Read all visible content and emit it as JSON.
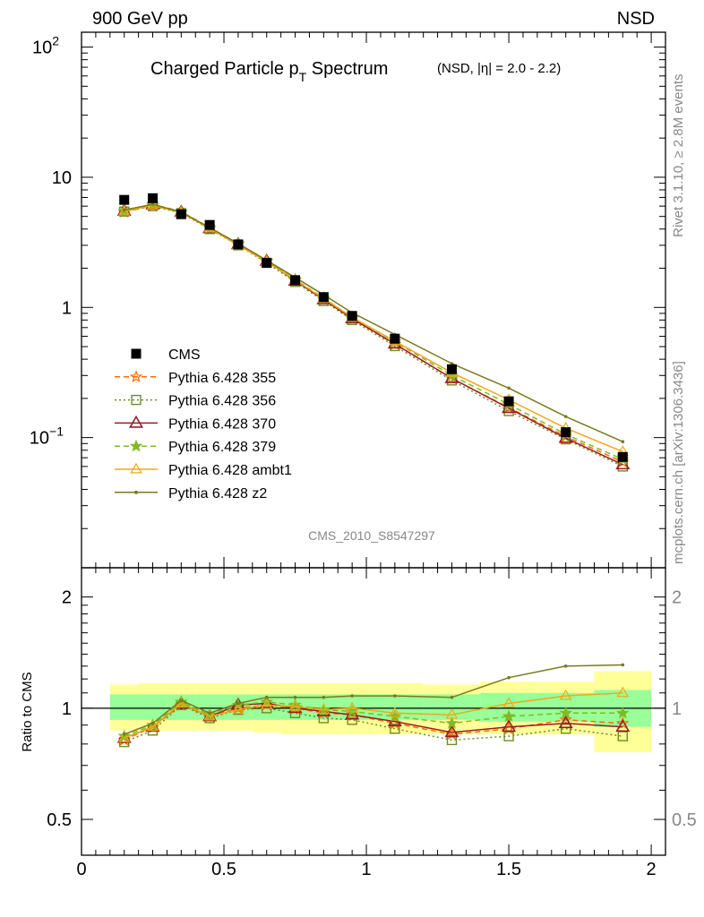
{
  "header": {
    "left": "900 GeV pp",
    "right": "NSD"
  },
  "side_labels": {
    "rivet": "Rivet 3.1.10, ≥ 2.8M events",
    "mcplots": "mcplots.cern.ch [arXiv:1306.3436]"
  },
  "title": {
    "main_a": "Charged Particle p",
    "main_sub": "T",
    "main_b": " Spectrum",
    "small": "(NSD, |η| = 2.0 - 2.2)"
  },
  "analysis_label": "CMS_2010_S8547297",
  "ratio_ylabel": "Ratio to CMS",
  "colors": {
    "cms": "#000000",
    "p355": "#ff6c00",
    "p356": "#6b8e23",
    "p370": "#9a1c24",
    "p379": "#7fba24",
    "ambt1": "#f0a818",
    "z2": "#7a7a1e",
    "band_green": "#99ff99",
    "band_yellow": "#ffff99"
  },
  "chart_data": [
    {
      "type": "line",
      "yscale": "log",
      "xlim": [
        0,
        2.05
      ],
      "ylim": [
        0.01,
        130
      ],
      "x_ticks": [
        "0",
        "0.5",
        "1",
        "1.5",
        "2"
      ],
      "y_ticks": [
        "10^-1",
        "1",
        "10",
        "10^2"
      ],
      "legend_position": "middle-left",
      "x": [
        0.15,
        0.25,
        0.35,
        0.45,
        0.55,
        0.65,
        0.75,
        0.85,
        0.95,
        1.1,
        1.3,
        1.5,
        1.7,
        1.9
      ],
      "data": {
        "name": "CMS",
        "values": [
          6.7,
          6.9,
          5.2,
          4.3,
          3.05,
          2.2,
          1.62,
          1.2,
          0.86,
          0.575,
          0.335,
          0.19,
          0.11,
          0.071
        ]
      },
      "series": [
        {
          "name": "Pythia 6.428 355",
          "key": "p355",
          "style": "dashed",
          "marker": "star",
          "values": [
            5.4,
            6.05,
            5.35,
            4.05,
            3.05,
            2.25,
            1.62,
            1.15,
            0.82,
            0.52,
            0.285,
            0.17,
            0.102,
            0.065
          ]
        },
        {
          "name": "Pythia 6.428 356",
          "key": "p356",
          "style": "dotted",
          "marker": "square",
          "values": [
            5.45,
            6.0,
            5.3,
            4.0,
            3.0,
            2.2,
            1.57,
            1.12,
            0.8,
            0.505,
            0.275,
            0.16,
            0.097,
            0.06
          ]
        },
        {
          "name": "Pythia 6.428 370",
          "key": "p370",
          "style": "solid",
          "marker": "triangle",
          "values": [
            5.5,
            6.15,
            5.4,
            4.05,
            3.05,
            2.27,
            1.6,
            1.15,
            0.82,
            0.525,
            0.285,
            0.168,
            0.099,
            0.062
          ]
        },
        {
          "name": "Pythia 6.428 379",
          "key": "p379",
          "style": "dashed",
          "marker": "star",
          "values": [
            5.55,
            6.2,
            5.45,
            4.1,
            3.1,
            2.28,
            1.64,
            1.18,
            0.84,
            0.545,
            0.3,
            0.18,
            0.106,
            0.068
          ]
        },
        {
          "name": "Pythia 6.428 ambt1",
          "key": "ambt1",
          "style": "solid",
          "marker": "triangle-open",
          "values": [
            5.45,
            6.1,
            5.35,
            4.05,
            3.0,
            2.25,
            1.62,
            1.17,
            0.84,
            0.55,
            0.315,
            0.195,
            0.118,
            0.078
          ]
        },
        {
          "name": "Pythia 6.428 z2",
          "key": "z2",
          "style": "solid",
          "marker": "dot",
          "values": [
            5.6,
            6.2,
            5.4,
            4.1,
            3.1,
            2.3,
            1.7,
            1.25,
            0.91,
            0.62,
            0.37,
            0.24,
            0.145,
            0.093
          ]
        }
      ]
    },
    {
      "type": "line",
      "yscale": "log",
      "ylabel": "Ratio to CMS",
      "xlim": [
        0,
        2.05
      ],
      "ylim": [
        0.4,
        2.4
      ],
      "x_ticks": [
        "0",
        "0.5",
        "1",
        "1.5",
        "2"
      ],
      "y_ticks": [
        "0.5",
        "1",
        "2"
      ],
      "reference_line": 1,
      "x": [
        0.15,
        0.25,
        0.35,
        0.45,
        0.55,
        0.65,
        0.75,
        0.85,
        0.95,
        1.1,
        1.3,
        1.5,
        1.7,
        1.9
      ],
      "bin_edges": [
        0.1,
        0.2,
        0.3,
        0.4,
        0.5,
        0.6,
        0.7,
        0.8,
        0.9,
        1.0,
        1.2,
        1.4,
        1.6,
        1.8,
        2.0
      ],
      "band_stat": [
        [
          0.93,
          1.09
        ],
        [
          0.93,
          1.09
        ],
        [
          0.93,
          1.09
        ],
        [
          0.93,
          1.09
        ],
        [
          0.93,
          1.09
        ],
        [
          0.93,
          1.09
        ],
        [
          0.93,
          1.09
        ],
        [
          0.93,
          1.09
        ],
        [
          0.93,
          1.09
        ],
        [
          0.93,
          1.09
        ],
        [
          0.93,
          1.09
        ],
        [
          0.92,
          1.1
        ],
        [
          0.92,
          1.1
        ],
        [
          0.89,
          1.12
        ]
      ],
      "band_total": [
        [
          0.87,
          1.16
        ],
        [
          0.87,
          1.17
        ],
        [
          0.87,
          1.17
        ],
        [
          0.87,
          1.17
        ],
        [
          0.87,
          1.17
        ],
        [
          0.86,
          1.17
        ],
        [
          0.85,
          1.17
        ],
        [
          0.85,
          1.17
        ],
        [
          0.85,
          1.17
        ],
        [
          0.85,
          1.17
        ],
        [
          0.85,
          1.16
        ],
        [
          0.85,
          1.18
        ],
        [
          0.85,
          1.18
        ],
        [
          0.76,
          1.26
        ]
      ],
      "series": [
        {
          "name": "Pythia 6.428 355",
          "key": "p355",
          "style": "dashed",
          "marker": "star",
          "values": [
            0.82,
            0.89,
            1.02,
            0.95,
            1.0,
            1.02,
            1.0,
            0.97,
            0.96,
            0.91,
            0.85,
            0.88,
            0.93,
            0.91
          ]
        },
        {
          "name": "Pythia 6.428 356",
          "key": "p356",
          "style": "dotted",
          "marker": "square",
          "values": [
            0.81,
            0.87,
            1.02,
            0.94,
            0.99,
            1.0,
            0.97,
            0.94,
            0.93,
            0.88,
            0.82,
            0.84,
            0.88,
            0.84
          ]
        },
        {
          "name": "Pythia 6.428 370",
          "key": "p370",
          "style": "solid",
          "marker": "triangle",
          "values": [
            0.83,
            0.89,
            1.03,
            0.95,
            1.02,
            1.03,
            1.0,
            0.98,
            0.96,
            0.92,
            0.86,
            0.89,
            0.91,
            0.89
          ]
        },
        {
          "name": "Pythia 6.428 379",
          "key": "p379",
          "style": "dashed",
          "marker": "star",
          "values": [
            0.84,
            0.9,
            1.04,
            0.96,
            1.02,
            1.04,
            1.02,
            0.99,
            0.98,
            0.95,
            0.91,
            0.95,
            0.97,
            0.97
          ]
        },
        {
          "name": "Pythia 6.428 ambt1",
          "key": "ambt1",
          "style": "solid",
          "marker": "triangle-open",
          "values": [
            0.83,
            0.89,
            1.03,
            0.95,
            0.99,
            1.02,
            1.01,
            0.99,
            1.0,
            0.97,
            0.96,
            1.03,
            1.08,
            1.1
          ]
        },
        {
          "name": "Pythia 6.428 z2",
          "key": "z2",
          "style": "solid",
          "marker": "dot",
          "values": [
            0.85,
            0.91,
            1.05,
            0.97,
            1.03,
            1.07,
            1.07,
            1.07,
            1.08,
            1.08,
            1.07,
            1.21,
            1.3,
            1.31
          ]
        }
      ]
    }
  ]
}
